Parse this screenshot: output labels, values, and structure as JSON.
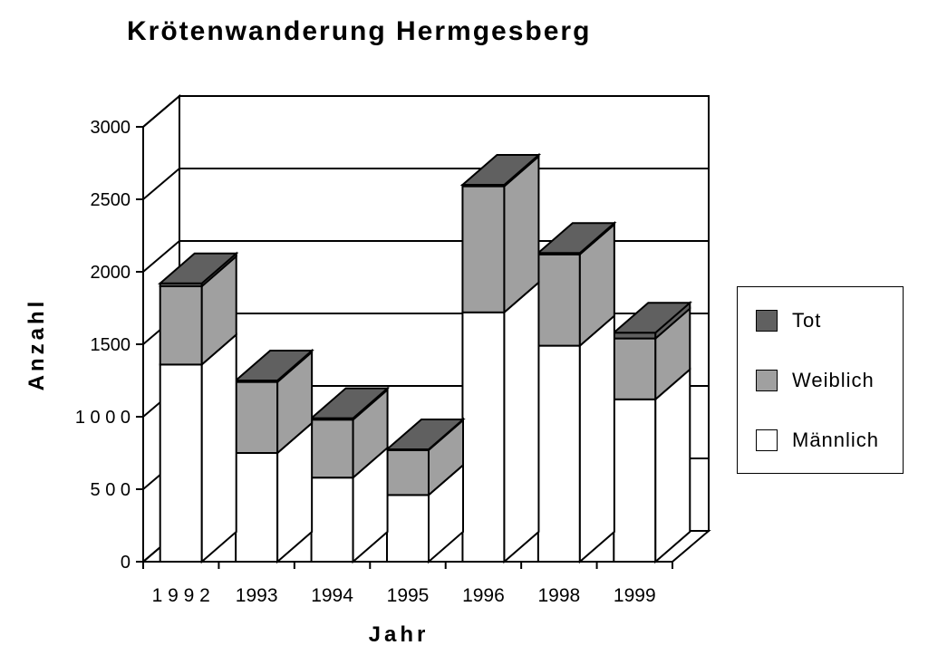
{
  "chart_data": {
    "type": "bar",
    "stacked": true,
    "three_d": true,
    "title": "Krötenwanderung Hermgesberg",
    "xlabel": "Jahr",
    "ylabel": "Anzahl",
    "categories": [
      "1 9 9 2",
      "1993",
      "1994",
      "1995",
      "1996",
      "1998",
      "1999"
    ],
    "series": [
      {
        "name": "Männlich",
        "color": "#ffffff",
        "values": [
          1360,
          750,
          580,
          460,
          1720,
          1490,
          1120
        ]
      },
      {
        "name": "Weiblich",
        "color": "#a0a0a0",
        "values": [
          540,
          490,
          400,
          310,
          870,
          630,
          420
        ]
      },
      {
        "name": "Tot",
        "color": "#606060",
        "values": [
          20,
          10,
          10,
          5,
          10,
          10,
          40
        ]
      }
    ],
    "ylim": [
      0,
      3000
    ],
    "yticks": [
      0,
      500,
      1000,
      1500,
      2000,
      2500,
      3000
    ],
    "ytick_labels": [
      "0",
      "5 0 0",
      "1 0 0 0",
      "1500",
      "2000",
      "2500",
      "3000"
    ],
    "grid": true,
    "legend_position": "right",
    "legend_order": [
      "Tot",
      "Weiblich",
      "Männlich"
    ]
  }
}
